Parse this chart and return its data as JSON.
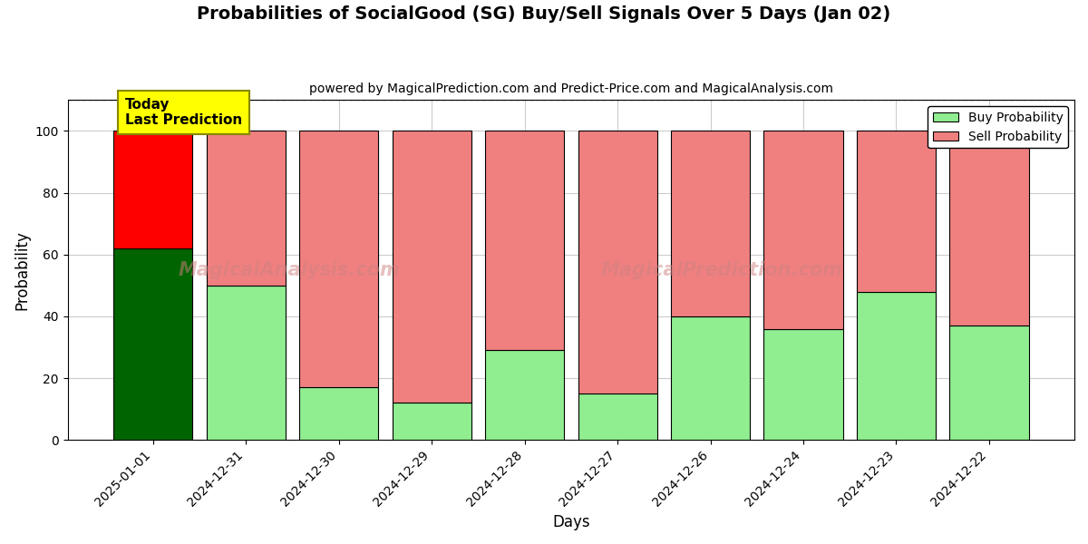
{
  "title": "Probabilities of SocialGood (SG) Buy/Sell Signals Over 5 Days (Jan 02)",
  "subtitle": "powered by MagicalPrediction.com and Predict-Price.com and MagicalAnalysis.com",
  "xlabel": "Days",
  "ylabel": "Probability",
  "watermark_left": "MagicalAnalysis.com",
  "watermark_right": "MagicalPrediction.com",
  "categories": [
    "2025-01-01",
    "2024-12-31",
    "2024-12-30",
    "2024-12-29",
    "2024-12-28",
    "2024-12-27",
    "2024-12-26",
    "2024-12-24",
    "2024-12-23",
    "2024-12-22"
  ],
  "buy_values": [
    62,
    50,
    17,
    12,
    29,
    15,
    40,
    36,
    48,
    37
  ],
  "sell_values": [
    38,
    50,
    83,
    88,
    71,
    85,
    60,
    64,
    52,
    63
  ],
  "today_index": 0,
  "today_buy_color": "#006400",
  "today_sell_color": "#FF0000",
  "buy_color": "#90EE90",
  "sell_color": "#F08080",
  "today_label_bg": "#FFFF00",
  "today_label_text": "Today\nLast Prediction",
  "legend_buy": "Buy Probability",
  "legend_sell": "Sell Probability",
  "ylim": [
    0,
    110
  ],
  "dashed_line_y": 110,
  "background_color": "#ffffff",
  "grid_color": "#cccccc",
  "bar_width": 0.85
}
